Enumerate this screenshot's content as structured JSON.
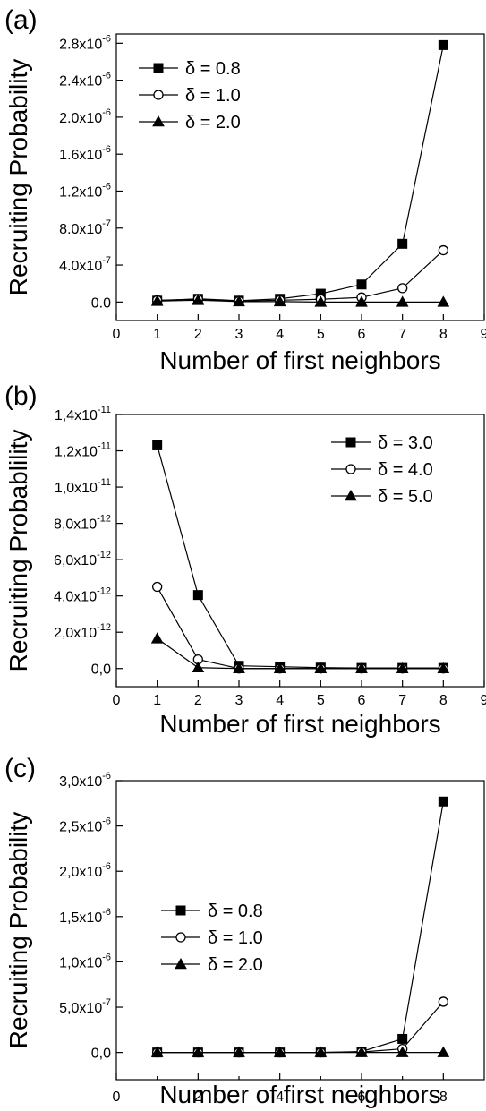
{
  "chart_data": [
    {
      "type": "line",
      "panel_label": "(a)",
      "xlabel": "Number of first neighbors",
      "ylabel": "Recruiting Probability",
      "xlim": [
        0,
        9
      ],
      "ylim": [
        -2e-07,
        2.9e-06
      ],
      "xticks": [
        0,
        1,
        2,
        3,
        4,
        5,
        6,
        7,
        8,
        9
      ],
      "xtick_labels": [
        "0",
        "1",
        "2",
        "3",
        "4",
        "5",
        "6",
        "7",
        "8",
        "9"
      ],
      "yticks": [
        0,
        4e-07,
        8e-07,
        1.2e-06,
        1.6e-06,
        2e-06,
        2.4e-06,
        2.8e-06
      ],
      "ytick_labels": [
        {
          "base": "0.0",
          "exp": ""
        },
        {
          "base": "4.0x10",
          "exp": "-7"
        },
        {
          "base": "8.0x10",
          "exp": "-7"
        },
        {
          "base": "1.2x10",
          "exp": "-6"
        },
        {
          "base": "1.6x10",
          "exp": "-6"
        },
        {
          "base": "2.0x10",
          "exp": "-6"
        },
        {
          "base": "2.4x10",
          "exp": "-6"
        },
        {
          "base": "2.8x10",
          "exp": "-6"
        }
      ],
      "legend_position": "top-left",
      "grid": false,
      "series": [
        {
          "name": "δ = 0.8",
          "marker": "square-filled",
          "x": [
            1,
            2,
            3,
            4,
            5,
            6,
            7,
            8
          ],
          "y": [
            1.5e-08,
            3.5e-08,
            1.5e-08,
            3.5e-08,
            9e-08,
            1.9e-07,
            6.3e-07,
            2.78e-06
          ]
        },
        {
          "name": "δ = 1.0",
          "marker": "circle-open",
          "x": [
            1,
            2,
            3,
            4,
            5,
            6,
            7,
            8
          ],
          "y": [
            2e-08,
            3e-08,
            1e-08,
            2e-08,
            3e-08,
            5e-08,
            1.5e-07,
            5.6e-07
          ]
        },
        {
          "name": "δ = 2.0",
          "marker": "triangle-filled",
          "x": [
            1,
            2,
            3,
            4,
            5,
            6,
            7,
            8
          ],
          "y": [
            1e-08,
            2e-08,
            5e-09,
            5e-09,
            0,
            0,
            0,
            0
          ]
        }
      ]
    },
    {
      "type": "line",
      "panel_label": "(b)",
      "xlabel": "Number of first neighbors",
      "ylabel": "Recruiting Probablility",
      "xlim": [
        0,
        9
      ],
      "ylim": [
        -1e-12,
        1.4e-11
      ],
      "xticks": [
        0,
        1,
        2,
        3,
        4,
        5,
        6,
        7,
        8,
        9
      ],
      "xtick_labels": [
        "0",
        "1",
        "2",
        "3",
        "4",
        "5",
        "6",
        "7",
        "8",
        "9"
      ],
      "yticks": [
        0,
        2e-12,
        4e-12,
        6e-12,
        8e-12,
        1e-11,
        1.2e-11,
        1.4e-11
      ],
      "ytick_labels": [
        {
          "base": "0,0",
          "exp": ""
        },
        {
          "base": "2,0x10",
          "exp": "-12"
        },
        {
          "base": "4,0x10",
          "exp": "-12"
        },
        {
          "base": "6,0x10",
          "exp": "-12"
        },
        {
          "base": "8,0x10",
          "exp": "-12"
        },
        {
          "base": "1,0x10",
          "exp": "-11"
        },
        {
          "base": "1,2x10",
          "exp": "-11"
        },
        {
          "base": "1,4x10",
          "exp": "-11"
        }
      ],
      "legend_position": "top-right",
      "grid": false,
      "series": [
        {
          "name": "δ = 3.0",
          "marker": "square-filled",
          "x": [
            1,
            2,
            3,
            4,
            5,
            6,
            7,
            8
          ],
          "y": [
            1.23e-11,
            4.05e-12,
            1.5e-13,
            1e-13,
            5e-14,
            3e-14,
            3e-14,
            3e-14
          ]
        },
        {
          "name": "δ = 4.0",
          "marker": "circle-open",
          "x": [
            1,
            2,
            3,
            4,
            5,
            6,
            7,
            8
          ],
          "y": [
            4.5e-12,
            5e-13,
            0,
            0,
            0,
            0,
            0,
            0
          ]
        },
        {
          "name": "δ = 5.0",
          "marker": "triangle-filled",
          "x": [
            1,
            2,
            3,
            4,
            5,
            6,
            7,
            8
          ],
          "y": [
            1.65e-12,
            5e-14,
            0,
            0,
            0,
            0,
            0,
            0
          ]
        }
      ]
    },
    {
      "type": "line",
      "panel_label": "(c)",
      "xlabel": "Number of first neighbors",
      "ylabel": "Recruiting Probability",
      "xlim": [
        0,
        9
      ],
      "ylim": [
        -3e-07,
        3e-06
      ],
      "xticks": [
        0,
        2,
        4,
        6,
        8
      ],
      "xtick_labels": [
        "0",
        "2",
        "4",
        "6",
        "8"
      ],
      "yticks": [
        0,
        5e-07,
        1e-06,
        1.5e-06,
        2e-06,
        2.5e-06,
        3e-06
      ],
      "ytick_labels": [
        {
          "base": "0,0",
          "exp": ""
        },
        {
          "base": "5,0x10",
          "exp": "-7"
        },
        {
          "base": "1,0x10",
          "exp": "-6"
        },
        {
          "base": "1,5x10",
          "exp": "-6"
        },
        {
          "base": "2,0x10",
          "exp": "-6"
        },
        {
          "base": "2,5x10",
          "exp": "-6"
        },
        {
          "base": "3,0x10",
          "exp": "-6"
        }
      ],
      "legend_position": "middle-left",
      "grid": false,
      "series": [
        {
          "name": "δ = 0.8",
          "marker": "square-filled",
          "x": [
            1,
            2,
            3,
            4,
            5,
            6,
            7,
            8
          ],
          "y": [
            0,
            0,
            0,
            0,
            0,
            1e-08,
            1.5e-07,
            2.77e-06
          ]
        },
        {
          "name": "δ = 1.0",
          "marker": "circle-open",
          "x": [
            1,
            2,
            3,
            4,
            5,
            6,
            7,
            8
          ],
          "y": [
            0,
            0,
            0,
            0,
            0,
            5e-09,
            4e-08,
            5.6e-07
          ]
        },
        {
          "name": "δ = 2.0",
          "marker": "triangle-filled",
          "x": [
            1,
            2,
            3,
            4,
            5,
            6,
            7,
            8
          ],
          "y": [
            0,
            0,
            0,
            0,
            0,
            0,
            0,
            0
          ]
        }
      ]
    }
  ]
}
